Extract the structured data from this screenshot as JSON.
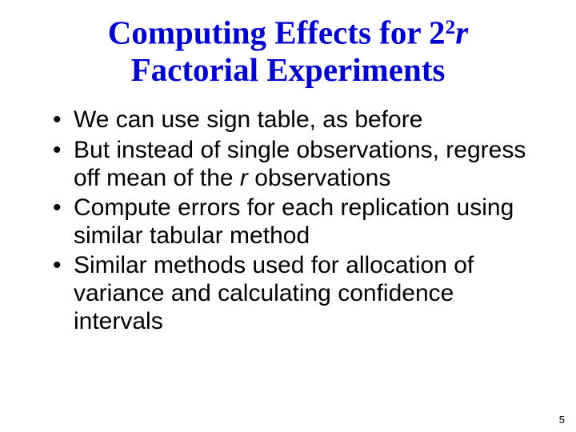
{
  "slide": {
    "title_before_sup": "Computing Effects for 2",
    "title_sup": "2",
    "title_after_sup": "r",
    "title_line2": "Factorial Experiments",
    "title_color": "#0000cc",
    "title_fontfamily": "Comic Sans MS",
    "title_fontsize_pt": 31,
    "body_fontfamily": "Arial",
    "body_fontsize_pt": 23,
    "body_color": "#000000",
    "background_color": "#ffffff",
    "bullets": [
      {
        "pre": "We can use sign table, as before",
        "italic": "",
        "post": ""
      },
      {
        "pre": "But instead of single observations, regress off mean of the ",
        "italic": "r",
        "post": " observations"
      },
      {
        "pre": "Compute errors for each replication using similar tabular method",
        "italic": "",
        "post": ""
      },
      {
        "pre": "Similar methods used for allocation of variance and calculating confidence intervals",
        "italic": "",
        "post": ""
      }
    ],
    "page_number": "5"
  }
}
